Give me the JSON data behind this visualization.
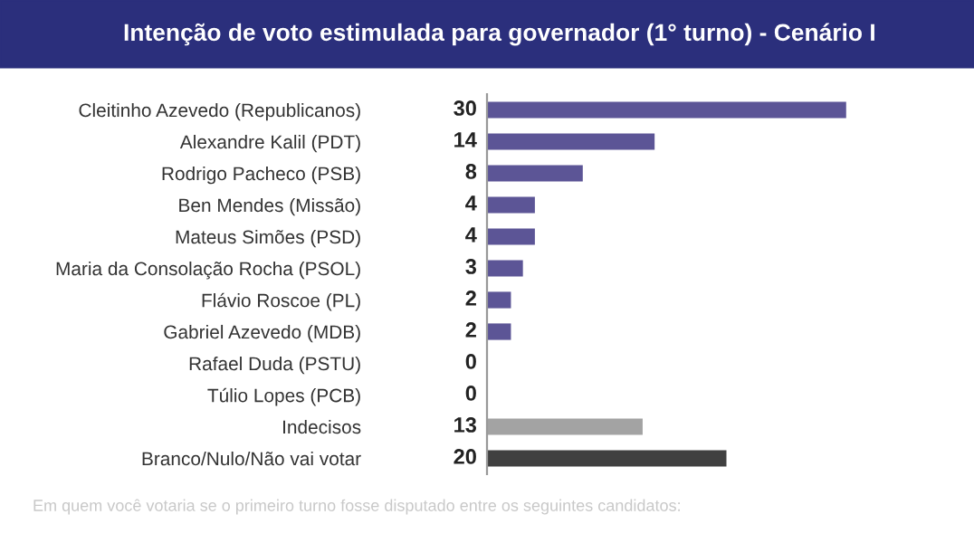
{
  "chart_data": {
    "type": "bar",
    "orientation": "horizontal",
    "title": "Intenção de voto estimulada para governador (1° turno) - Cenário I",
    "categories": [
      "Cleitinho Azevedo (Republicanos)",
      "Alexandre Kalil (PDT)",
      "Rodrigo Pacheco (PSB)",
      "Ben Mendes (Missão)",
      "Mateus Simões (PSD)",
      "Maria da Consolação Rocha (PSOL)",
      "Flávio Roscoe (PL)",
      "Gabriel Azevedo (MDB)",
      "Rafael Duda (PSTU)",
      "Túlio Lopes (PCB)",
      "Indecisos",
      "Branco/Nulo/Não vai votar"
    ],
    "values": [
      30,
      14,
      8,
      4,
      4,
      3,
      2,
      2,
      0,
      0,
      13,
      20
    ],
    "colors": [
      "#5c5596",
      "#5c5596",
      "#5c5596",
      "#5c5596",
      "#5c5596",
      "#5c5596",
      "#5c5596",
      "#5c5596",
      "#5c5596",
      "#5c5596",
      "#a3a3a3",
      "#404040"
    ],
    "data_labels": true,
    "grid": false,
    "legend": false,
    "annotations": [
      "Em quem você votaria se o primeiro turno fosse disputado entre os seguintes candidatos:"
    ]
  }
}
